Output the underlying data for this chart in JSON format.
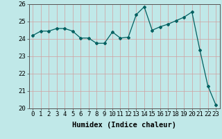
{
  "x": [
    0,
    1,
    2,
    3,
    4,
    5,
    6,
    7,
    8,
    9,
    10,
    11,
    12,
    13,
    14,
    15,
    16,
    17,
    18,
    19,
    20,
    21,
    22,
    23
  ],
  "y": [
    24.2,
    24.45,
    24.45,
    24.6,
    24.6,
    24.45,
    24.05,
    24.05,
    23.75,
    23.75,
    24.4,
    24.05,
    24.1,
    25.4,
    25.85,
    24.5,
    24.7,
    24.85,
    25.05,
    25.25,
    25.55,
    23.35,
    21.3,
    20.2
  ],
  "line_color": "#006060",
  "marker": "D",
  "markersize": 2.0,
  "linewidth": 0.9,
  "bg_color": "#c0e8e8",
  "grid_color": "#d0a0a0",
  "xlabel": "Humidex (Indice chaleur)",
  "ylim": [
    20,
    26
  ],
  "xlim": [
    -0.5,
    23.5
  ],
  "yticks": [
    20,
    21,
    22,
    23,
    24,
    25,
    26
  ],
  "xticks": [
    0,
    1,
    2,
    3,
    4,
    5,
    6,
    7,
    8,
    9,
    10,
    11,
    12,
    13,
    14,
    15,
    16,
    17,
    18,
    19,
    20,
    21,
    22,
    23
  ],
  "tick_fontsize": 6.5,
  "label_fontsize": 7.5
}
